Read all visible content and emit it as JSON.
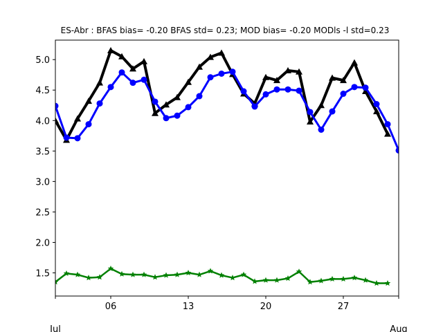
{
  "chart_data": {
    "type": "line",
    "title": "ES-Abr   : BFAS bias= -0.20 BFAS std= 0.23; MOD bias= -0.20 MODls -l std=0.23",
    "xlabel": "",
    "ylabel": "",
    "xlim": [
      1,
      32
    ],
    "ylim": [
      1.12,
      5.32
    ],
    "x_ticks": [
      {
        "value": 6,
        "label": "06"
      },
      {
        "value": 13,
        "label": "13"
      },
      {
        "value": 20,
        "label": "20"
      },
      {
        "value": 27,
        "label": "27"
      }
    ],
    "x_month_labels": [
      {
        "value": 1,
        "label": "Jul"
      },
      {
        "value": 32,
        "label": "Aug"
      }
    ],
    "y_ticks": [
      1.5,
      2.0,
      2.5,
      3.0,
      3.5,
      4.0,
      4.5,
      5.0
    ],
    "grid": false,
    "series": [
      {
        "color": "#000000",
        "marker": "triangle",
        "x": [
          1,
          2,
          3,
          4,
          5,
          6,
          7,
          8,
          9,
          10,
          11,
          12,
          13,
          14,
          15,
          16,
          17,
          18,
          19,
          20,
          21,
          22,
          23,
          24,
          25,
          26,
          27,
          28,
          29,
          30,
          31
        ],
        "values": [
          4.0,
          3.68,
          4.03,
          4.32,
          4.62,
          5.15,
          5.05,
          4.85,
          4.97,
          4.12,
          4.26,
          4.38,
          4.63,
          4.88,
          5.04,
          5.11,
          4.76,
          4.44,
          4.28,
          4.71,
          4.66,
          4.82,
          4.8,
          3.98,
          4.25,
          4.7,
          4.66,
          4.95,
          4.48,
          4.15,
          3.78
        ]
      },
      {
        "color": "#0000ff",
        "marker": "circle",
        "x": [
          1,
          2,
          3,
          4,
          5,
          6,
          7,
          8,
          9,
          10,
          11,
          12,
          13,
          14,
          15,
          16,
          17,
          18,
          19,
          20,
          21,
          22,
          23,
          24,
          25,
          26,
          27,
          28,
          29,
          30,
          31,
          32
        ],
        "values": [
          4.24,
          3.72,
          3.71,
          3.94,
          4.28,
          4.55,
          4.79,
          4.62,
          4.67,
          4.31,
          4.04,
          4.08,
          4.22,
          4.4,
          4.71,
          4.77,
          4.8,
          4.48,
          4.23,
          4.43,
          4.51,
          4.51,
          4.49,
          4.14,
          3.85,
          4.15,
          4.44,
          4.55,
          4.54,
          4.27,
          3.94,
          3.51
        ]
      },
      {
        "color": "#008000",
        "marker": "star",
        "x": [
          1,
          2,
          3,
          4,
          5,
          6,
          7,
          8,
          9,
          10,
          11,
          12,
          13,
          14,
          15,
          16,
          17,
          18,
          19,
          20,
          21,
          22,
          23,
          24,
          25,
          26,
          27,
          28,
          29,
          30,
          31
        ],
        "values": [
          1.35,
          1.49,
          1.47,
          1.42,
          1.43,
          1.57,
          1.48,
          1.47,
          1.47,
          1.43,
          1.46,
          1.47,
          1.5,
          1.47,
          1.53,
          1.46,
          1.42,
          1.47,
          1.36,
          1.38,
          1.38,
          1.41,
          1.52,
          1.35,
          1.37,
          1.4,
          1.4,
          1.42,
          1.38,
          1.33,
          1.33
        ]
      }
    ]
  }
}
